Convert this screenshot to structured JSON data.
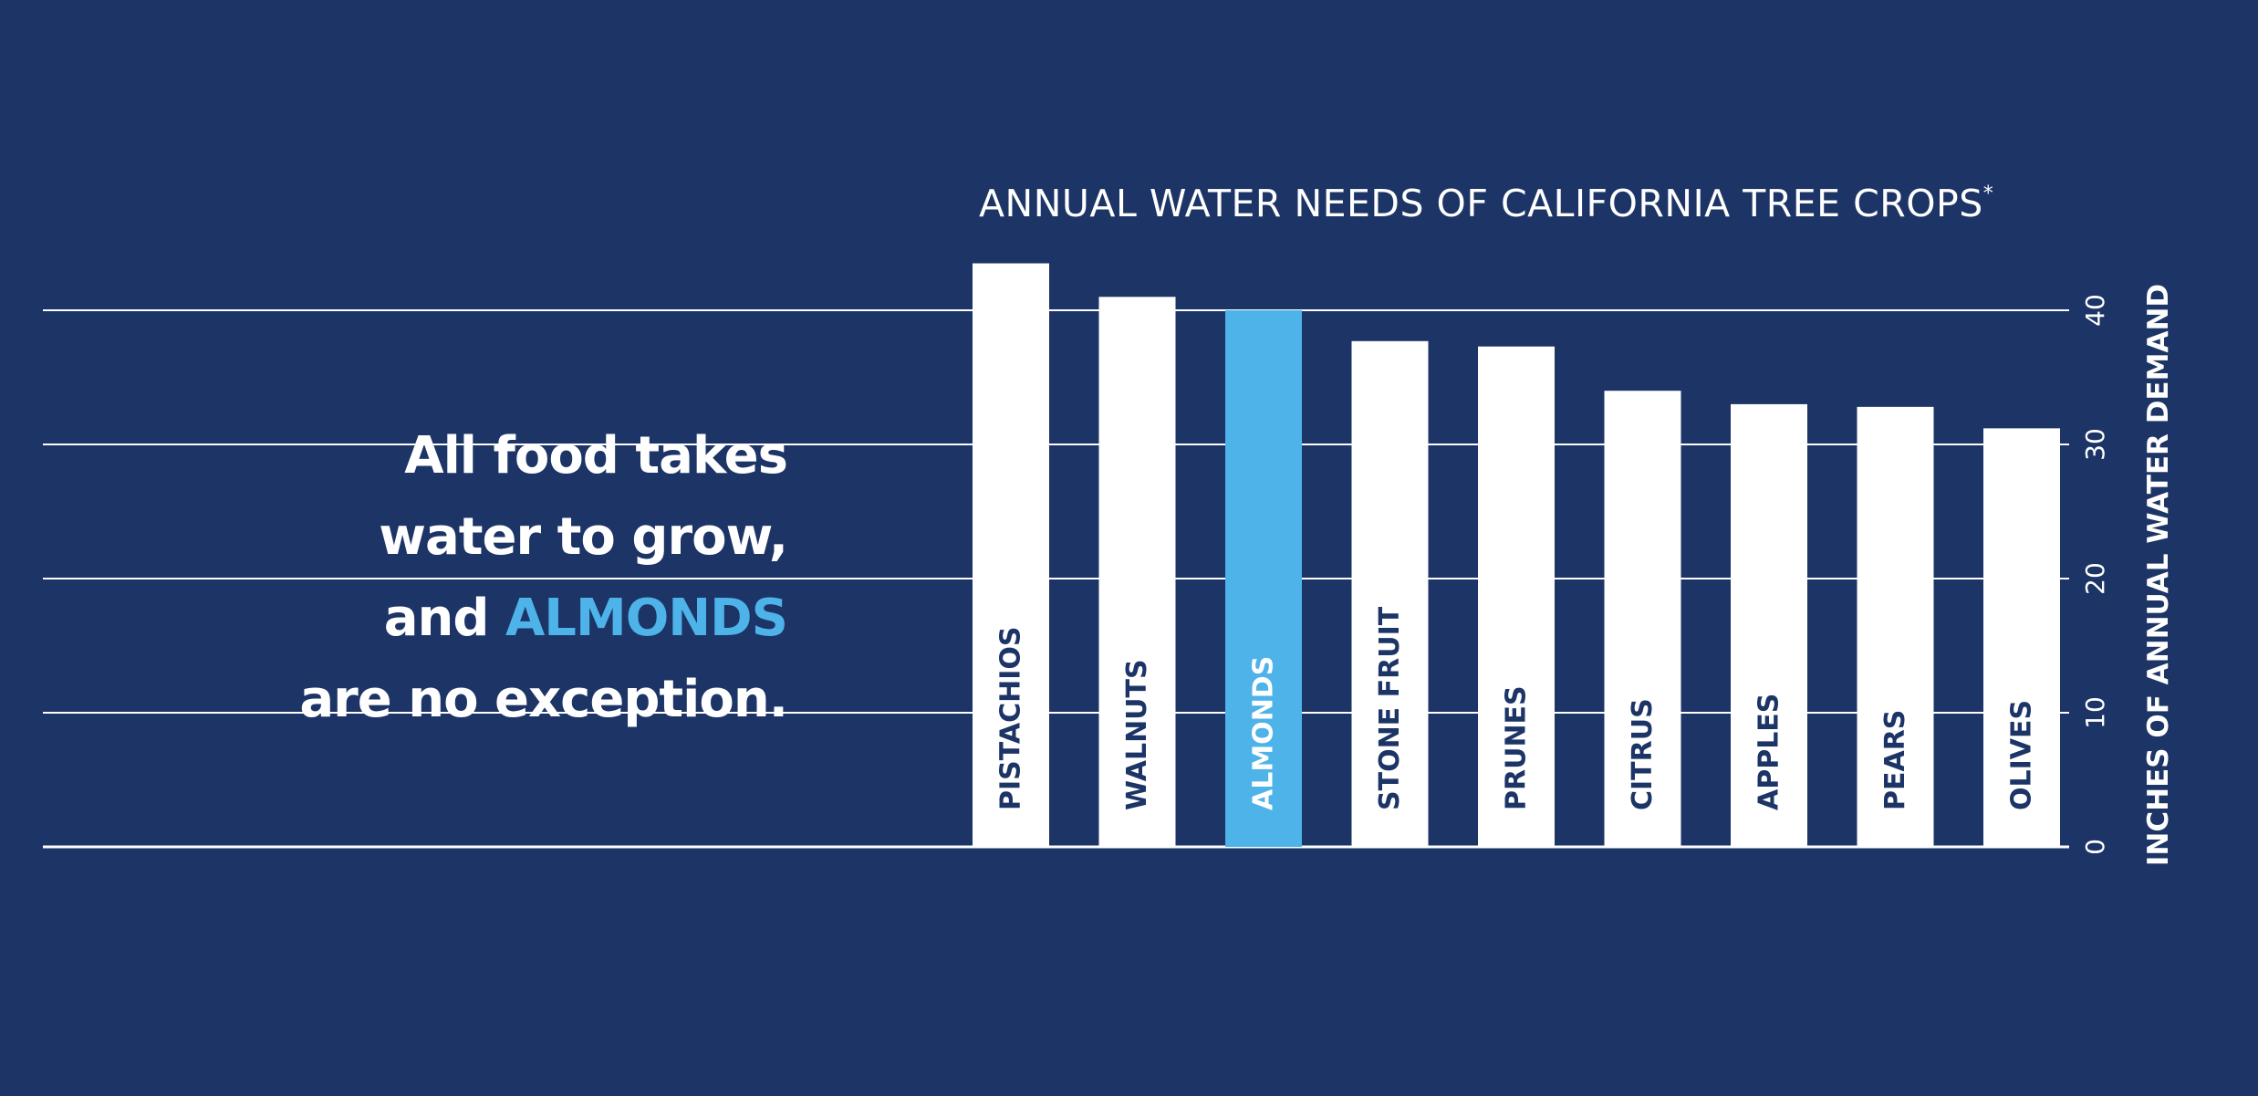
{
  "headline": {
    "line1": "All food takes",
    "line2": "water to grow,",
    "line3_prefix": "and ",
    "line3_highlight": "ALMONDS",
    "line4": "are no exception."
  },
  "colors": {
    "background": "#1c3466",
    "bar": "#ffffff",
    "highlight_bar": "#4db3e8",
    "bar_label": "#1c3466",
    "highlight_label": "#ffffff",
    "gridline": "#ffffff"
  },
  "chart_data": {
    "type": "bar",
    "orientation": "vertical",
    "title": "ANNUAL WATER NEEDS OF CALIFORNIA TREE CROPS",
    "title_mark": "*",
    "categories": [
      "PISTACHIOS",
      "WALNUTS",
      "ALMONDS",
      "STONE FRUIT",
      "PRUNES",
      "CITRUS",
      "APPLES",
      "PEARS",
      "OLIVES"
    ],
    "values": [
      43.5,
      41,
      40,
      37.7,
      37.3,
      34,
      33,
      32.8,
      31.2
    ],
    "highlight": "ALMONDS",
    "ylabel": "INCHES OF ANNUAL WATER DEMAND",
    "yticks": [
      0,
      10,
      20,
      30,
      40
    ],
    "ylim": [
      0,
      40
    ],
    "y_axis_position": "right",
    "grid": true,
    "category_labels": "inside bars, rotated vertical"
  }
}
